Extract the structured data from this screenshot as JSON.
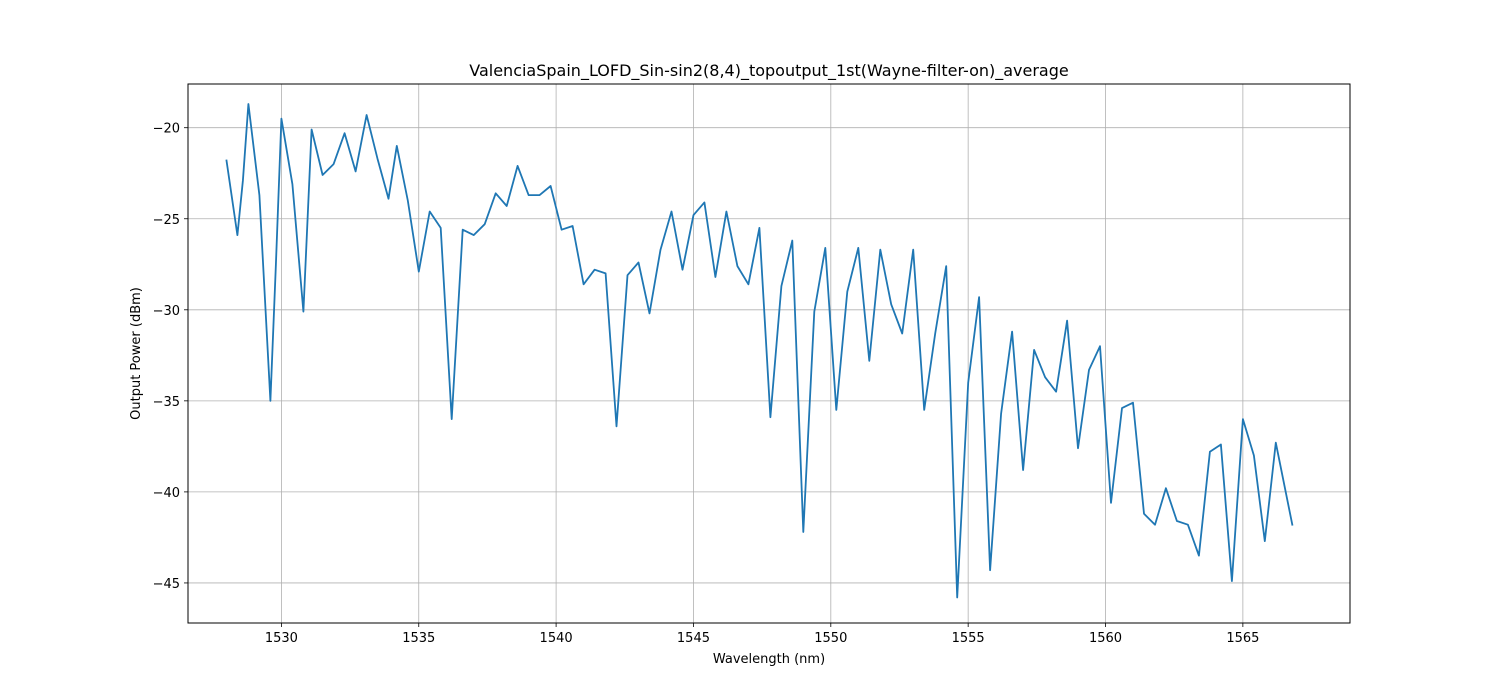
{
  "chart_data": {
    "type": "line",
    "title": "ValenciaSpain_LOFD_Sin-sin2(8,4)_topoutput_1st(Wayne-filter-on)_average",
    "xlabel": "Wavelength (nm)",
    "ylabel": "Output Power (dBm)",
    "xlim": [
      1526.6,
      1568.9
    ],
    "ylim": [
      -47.2,
      -17.6
    ],
    "xticks": [
      1530,
      1535,
      1540,
      1545,
      1550,
      1555,
      1560,
      1565
    ],
    "yticks": [
      -45,
      -40,
      -35,
      -30,
      -25,
      -20
    ],
    "xtick_labels": [
      "1530",
      "1535",
      "1540",
      "1545",
      "1550",
      "1555",
      "1560",
      "1565"
    ],
    "ytick_labels": [
      "−45",
      "−40",
      "−35",
      "−30",
      "−25",
      "−20"
    ],
    "grid": true,
    "series": [
      {
        "color": "#1f77b4",
        "x": [
          1528.0,
          1528.4,
          1528.6,
          1528.8,
          1529.2,
          1529.6,
          1529.8,
          1530.0,
          1530.4,
          1530.8,
          1531.1,
          1531.5,
          1531.9,
          1532.3,
          1532.7,
          1533.1,
          1533.5,
          1533.9,
          1534.2,
          1534.6,
          1535.0,
          1535.4,
          1535.8,
          1536.2,
          1536.6,
          1537.0,
          1537.4,
          1537.8,
          1538.2,
          1538.6,
          1539.0,
          1539.4,
          1539.8,
          1540.2,
          1540.6,
          1541.0,
          1541.4,
          1541.8,
          1542.2,
          1542.6,
          1543.0,
          1543.4,
          1543.8,
          1544.2,
          1544.6,
          1545.0,
          1545.4,
          1545.8,
          1546.2,
          1546.6,
          1547.0,
          1547.4,
          1547.8,
          1548.2,
          1548.6,
          1549.0,
          1549.4,
          1549.8,
          1550.2,
          1550.6,
          1551.0,
          1551.4,
          1551.8,
          1552.2,
          1552.6,
          1553.0,
          1553.4,
          1553.8,
          1554.2,
          1554.6,
          1555.0,
          1555.4,
          1555.8,
          1556.2,
          1556.6,
          1557.0,
          1557.4,
          1557.8,
          1558.2,
          1558.6,
          1559.0,
          1559.4,
          1559.8,
          1560.2,
          1560.6,
          1561.0,
          1561.4,
          1561.8,
          1562.2,
          1562.6,
          1563.0,
          1563.4,
          1563.8,
          1564.2,
          1564.6,
          1565.0,
          1565.4,
          1565.8,
          1566.2,
          1566.8
        ],
        "y": [
          -21.8,
          -25.9,
          -22.9,
          -18.7,
          -23.7,
          -35.0,
          -27.5,
          -19.5,
          -23.1,
          -30.1,
          -20.1,
          -22.6,
          -22.0,
          -20.3,
          -22.4,
          -19.3,
          -21.7,
          -23.9,
          -21.0,
          -24.0,
          -27.9,
          -24.6,
          -25.5,
          -36.0,
          -25.6,
          -25.9,
          -25.3,
          -23.6,
          -24.3,
          -22.1,
          -23.7,
          -23.7,
          -23.2,
          -25.6,
          -25.4,
          -28.6,
          -27.8,
          -28.0,
          -36.4,
          -28.1,
          -27.4,
          -30.2,
          -26.7,
          -24.6,
          -27.8,
          -24.8,
          -24.1,
          -28.2,
          -24.6,
          -27.6,
          -28.6,
          -25.5,
          -35.9,
          -28.7,
          -26.2,
          -42.2,
          -30.1,
          -26.6,
          -35.5,
          -29.0,
          -26.6,
          -32.8,
          -26.7,
          -29.7,
          -31.3,
          -26.7,
          -35.5,
          -31.3,
          -27.6,
          -45.8,
          -34.0,
          -29.3,
          -44.3,
          -35.7,
          -31.2,
          -38.8,
          -32.2,
          -33.7,
          -34.5,
          -30.6,
          -37.6,
          -33.3,
          -32.0,
          -40.6,
          -35.4,
          -35.1,
          -41.2,
          -41.8,
          -39.8,
          -41.6,
          -41.8,
          -43.5,
          -37.8,
          -37.4,
          -44.9,
          -36.0,
          -38.0,
          -42.7,
          -37.3,
          -41.8
        ]
      }
    ]
  }
}
